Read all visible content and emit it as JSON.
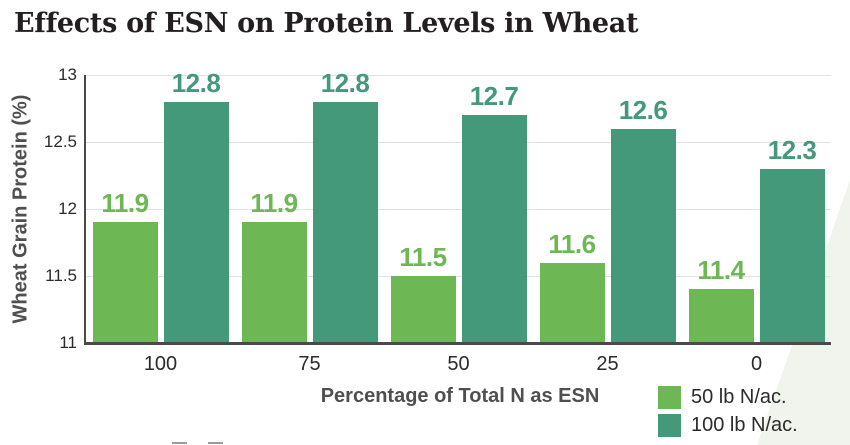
{
  "title": "Effects of ESN on Protein Levels in Wheat",
  "chart_data": {
    "type": "bar",
    "title": "Effects of ESN on Protein Levels in Wheat",
    "categories": [
      "100",
      "75",
      "50",
      "25",
      "0"
    ],
    "series": [
      {
        "name": "50 lb N/ac.",
        "color": "#6DB755",
        "values": [
          11.9,
          11.9,
          11.5,
          11.6,
          11.4
        ]
      },
      {
        "name": "100 lb N/ac.",
        "color": "#45997B",
        "values": [
          12.8,
          12.8,
          12.7,
          12.6,
          12.3
        ]
      }
    ],
    "xlabel": "Percentage of Total N as ESN",
    "ylabel": "Wheat Grain Protein (%)",
    "ylim": [
      11,
      13
    ],
    "yticks": [
      11,
      11.5,
      12,
      12.5,
      13
    ],
    "grid": true,
    "bar_value_labels": true,
    "legend_position": "bottom-right"
  },
  "colors": {
    "title_text": "#231f20",
    "axis_title_text": "#4f4f4f",
    "tick_text": "#2b2b2b",
    "gridline": "#e3e3e3",
    "spine": "#4a4a4a",
    "watermark_wedge": "#f0f4ec"
  }
}
